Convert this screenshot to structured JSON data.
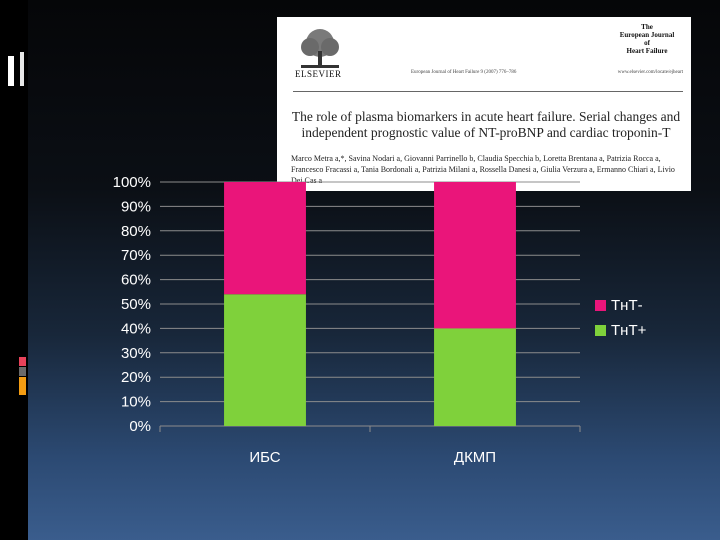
{
  "article": {
    "publisher": "ELSEVIER",
    "citation": "European Journal of Heart Failure 9 (2007) 776–786",
    "journal_name_lines": [
      "The",
      "European Journal",
      "of",
      "Heart Failure"
    ],
    "url": "www.elsevier.com/locate/ejheart",
    "title": "The role of plasma biomarkers in acute heart failure. Serial changes and independent prognostic value of NT-proBNP and cardiac troponin-T",
    "authors": "Marco Metra a,*, Savina Nodari a, Giovanni Parrinello b, Claudia Specchia b, Loretta Brentana a, Patrizia Rocca a, Francesco Fracassi a, Tania Bordonali a, Patrizia Milani a, Rossella Danesi a, Giulia Verzura a, Ermanno Chiari a, Livio Dei Cas a"
  },
  "chart_data": {
    "type": "bar",
    "stacked": "percent",
    "categories": [
      "ИБС",
      "ДКМП"
    ],
    "series": [
      {
        "name": "ТнТ+",
        "color": "#7fd13b",
        "values": [
          54,
          40
        ]
      },
      {
        "name": "ТнТ-",
        "color": "#ea157a",
        "values": [
          46,
          60
        ]
      }
    ],
    "y_ticks": [
      "0%",
      "10%",
      "20%",
      "30%",
      "40%",
      "50%",
      "60%",
      "70%",
      "80%",
      "90%",
      "100%"
    ],
    "ylim": [
      0,
      100
    ],
    "grid": true,
    "legend_position": "right",
    "legend_order": [
      "ТнТ-",
      "ТнТ+"
    ],
    "title": "",
    "xlabel": "",
    "ylabel": ""
  },
  "colors": {
    "gridline": "#8c8c8c",
    "axis_text": "#ffffff",
    "deco_red": "#e8425a",
    "deco_orange": "#f39c12",
    "deco_gray": "#6a6a6a"
  }
}
